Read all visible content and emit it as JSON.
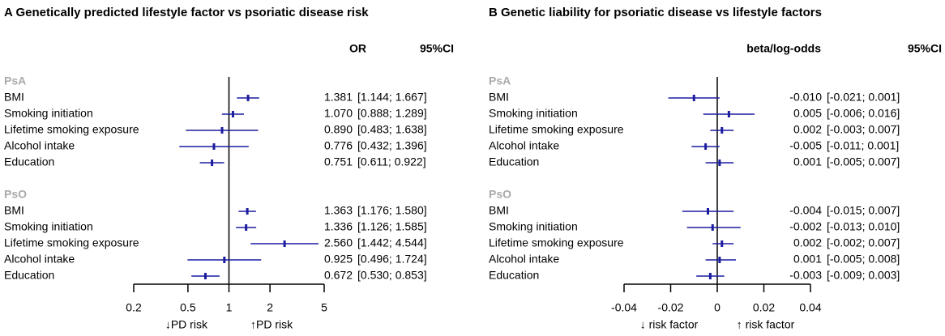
{
  "chart_data": [
    {
      "type": "forest",
      "title": "A  Genetically predicted lifestyle factor vs psoriatic disease risk",
      "columns": [
        "OR",
        "95%CI"
      ],
      "log_scale": true,
      "xlim": [
        0.2,
        5
      ],
      "xticks": [
        0.2,
        0.5,
        1,
        2,
        5
      ],
      "reference": 1,
      "xlabel_left": "↓PD risk",
      "xlabel_right": "↑PD risk",
      "color": "#1c1ca0",
      "groups": [
        {
          "name": "PsA",
          "categories": [
            "BMI",
            "Smoking initiation",
            "Lifetime smoking exposure",
            "Alcohol intake",
            "Education"
          ],
          "values": [
            1.381,
            1.07,
            0.89,
            0.776,
            0.751
          ],
          "value_labels": [
            "1.381",
            "1.070",
            "0.890",
            "0.776",
            "0.751"
          ],
          "lower": [
            1.144,
            0.888,
            0.483,
            0.432,
            0.611
          ],
          "upper": [
            1.667,
            1.289,
            1.638,
            1.396,
            0.922
          ],
          "ci_labels": [
            "[1.144; 1.667]",
            "[0.888; 1.289]",
            "[0.483; 1.638]",
            "[0.432; 1.396]",
            "[0.611; 0.922]"
          ]
        },
        {
          "name": "PsO",
          "categories": [
            "BMI",
            "Smoking initiation",
            "Lifetime smoking exposure",
            "Alcohol intake",
            "Education"
          ],
          "values": [
            1.363,
            1.336,
            2.56,
            0.925,
            0.672
          ],
          "value_labels": [
            "1.363",
            "1.336",
            "2.560",
            "0.925",
            "0.672"
          ],
          "lower": [
            1.176,
            1.126,
            1.442,
            0.496,
            0.53
          ],
          "upper": [
            1.58,
            1.585,
            4.544,
            1.724,
            0.853
          ],
          "ci_labels": [
            "[1.176; 1.580]",
            "[1.126; 1.585]",
            "[1.442; 4.544]",
            "[0.496; 1.724]",
            "[0.530; 0.853]"
          ]
        }
      ]
    },
    {
      "type": "forest",
      "title": "B  Genetic liability for psoriatic disease vs lifestyle factors",
      "columns": [
        "beta/log-odds",
        "95%CI"
      ],
      "log_scale": false,
      "xlim": [
        -0.04,
        0.04
      ],
      "xticks": [
        -0.04,
        -0.02,
        0,
        0.02,
        0.04
      ],
      "reference": 0,
      "xlabel_left": "↓ risk factor",
      "xlabel_right": "↑ risk factor",
      "color": "#1c1ca0",
      "groups": [
        {
          "name": "PsA",
          "categories": [
            "BMI",
            "Smoking initiation",
            "Lifetime smoking exposure",
            "Alcohol intake",
            "Education"
          ],
          "values": [
            -0.01,
            0.005,
            0.002,
            -0.005,
            0.001
          ],
          "value_labels": [
            "-0.010",
            "0.005",
            "0.002",
            "-0.005",
            "0.001"
          ],
          "lower": [
            -0.021,
            -0.006,
            -0.003,
            -0.011,
            -0.005
          ],
          "upper": [
            0.001,
            0.016,
            0.007,
            0.001,
            0.007
          ],
          "ci_labels": [
            "[-0.021; 0.001]",
            "[-0.006; 0.016]",
            "[-0.003; 0.007]",
            "[-0.011; 0.001]",
            "[-0.005; 0.007]"
          ]
        },
        {
          "name": "PsO",
          "categories": [
            "BMI",
            "Smoking initiation",
            "Lifetime smoking exposure",
            "Alcohol intake",
            "Education"
          ],
          "values": [
            -0.004,
            -0.002,
            0.002,
            0.001,
            -0.003
          ],
          "value_labels": [
            "-0.004",
            "-0.002",
            "0.002",
            "0.001",
            "-0.003"
          ],
          "lower": [
            -0.015,
            -0.013,
            -0.002,
            -0.005,
            -0.009
          ],
          "upper": [
            0.007,
            0.01,
            0.007,
            0.008,
            0.003
          ],
          "ci_labels": [
            "[-0.015; 0.007]",
            "[-0.013; 0.010]",
            "[-0.002; 0.007]",
            "[-0.005; 0.008]",
            "[-0.009; 0.003]"
          ]
        }
      ]
    }
  ]
}
